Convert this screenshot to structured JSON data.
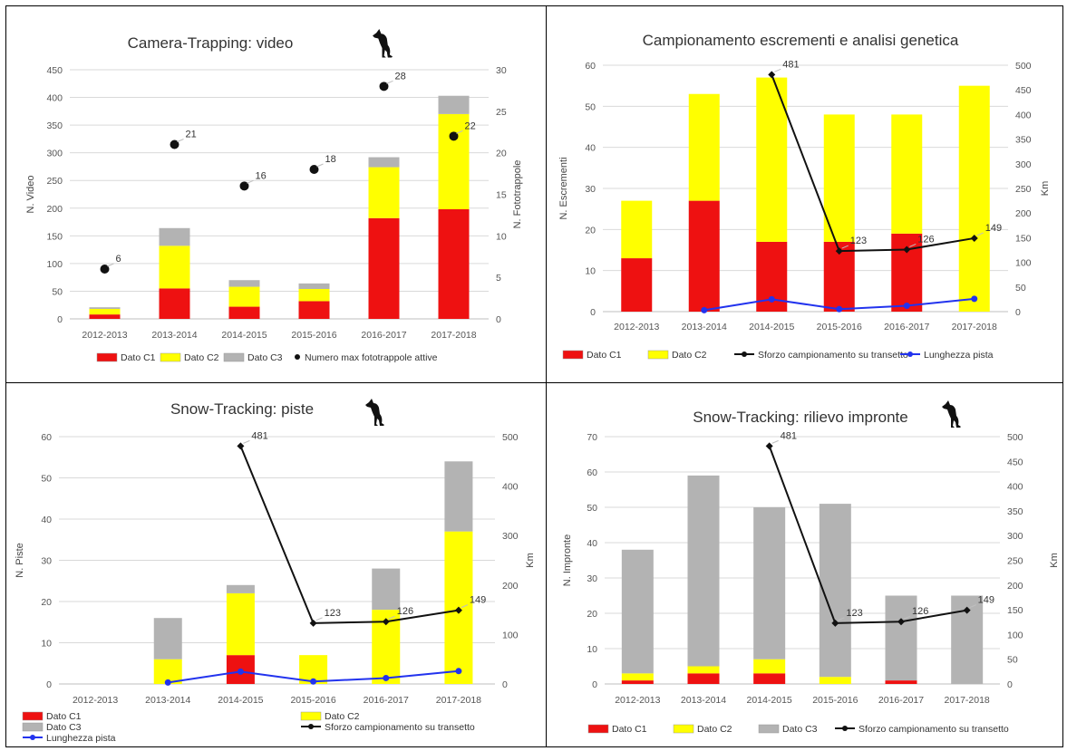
{
  "colors": {
    "c1": "#ee1111",
    "c2": "#ffff00",
    "c3": "#b3b3b3",
    "effort": "#111111",
    "length": "#2233ee",
    "grid": "#d9d9d9"
  },
  "icons": {
    "wolf": "wolf-icon"
  },
  "chart_data": [
    {
      "id": "video",
      "type": "bar",
      "title": "Camera-Trapping: video",
      "categories": [
        "2012-2013",
        "2013-2014",
        "2014-2015",
        "2015-2016",
        "2016-2017",
        "2017-2018"
      ],
      "ylabel": "N. Video",
      "y2label": "N. Fototrappole",
      "ylim": [
        0,
        450
      ],
      "yticks": [
        0,
        50,
        100,
        150,
        200,
        250,
        300,
        350,
        400,
        450
      ],
      "y2lim": [
        0,
        30
      ],
      "y2ticks": [
        0,
        5,
        10,
        15,
        20,
        25,
        30
      ],
      "series": [
        {
          "name": "Dato C1",
          "kind": "bar",
          "color": "c1",
          "values": [
            8,
            55,
            22,
            32,
            182,
            198
          ]
        },
        {
          "name": "Dato C2",
          "kind": "bar",
          "color": "c2",
          "values": [
            10,
            77,
            36,
            22,
            92,
            172
          ]
        },
        {
          "name": "Dato C3",
          "kind": "bar",
          "color": "c3",
          "values": [
            3,
            32,
            12,
            10,
            18,
            33
          ]
        },
        {
          "name": "Numero max fototrappole attive",
          "kind": "dots",
          "axis": "right",
          "color": "effort",
          "values": [
            6,
            21,
            16,
            18,
            28,
            22
          ],
          "labels": [
            "6",
            "21",
            "16",
            "18",
            "28",
            "22"
          ]
        }
      ],
      "legend": [
        {
          "label": "Dato C1",
          "sym": "box",
          "color": "c1"
        },
        {
          "label": "Dato C2",
          "sym": "box",
          "color": "c2"
        },
        {
          "label": "Dato C3",
          "sym": "box",
          "color": "c3"
        },
        {
          "label": "Numero max fototrappole attive",
          "sym": "dot",
          "color": "effort"
        }
      ],
      "grid": true
    },
    {
      "id": "scat",
      "type": "bar",
      "title": "Campionamento escrementi e analisi genetica",
      "categories": [
        "2012-2013",
        "2013-2014",
        "2014-2015",
        "2015-2016",
        "2016-2017",
        "2017-2018"
      ],
      "ylabel": "N. Escrementi",
      "y2label": "Km",
      "ylim": [
        0,
        60
      ],
      "yticks": [
        0,
        10,
        20,
        30,
        40,
        50,
        60
      ],
      "y2lim": [
        0,
        500
      ],
      "y2ticks": [
        0,
        50,
        100,
        150,
        200,
        250,
        300,
        350,
        400,
        450,
        500
      ],
      "series": [
        {
          "name": "Dato C1",
          "kind": "bar",
          "color": "c1",
          "values": [
            13,
            27,
            17,
            17,
            19,
            0
          ]
        },
        {
          "name": "Dato C2",
          "kind": "bar",
          "color": "c2",
          "values": [
            14,
            26,
            40,
            31,
            29,
            55
          ]
        },
        {
          "name": "Sforzo campionamento su transetto",
          "kind": "line",
          "axis": "right",
          "color": "effort",
          "values": [
            null,
            null,
            481,
            123,
            126,
            149
          ],
          "labels": [
            "",
            "",
            "481",
            "123",
            "126",
            "149"
          ]
        },
        {
          "name": "Lunghezza pista",
          "kind": "line",
          "axis": "right",
          "color": "length",
          "values": [
            null,
            3,
            25,
            5,
            12,
            26
          ]
        }
      ],
      "legend": [
        {
          "label": "Dato C1",
          "sym": "box",
          "color": "c1"
        },
        {
          "label": "Dato C2",
          "sym": "box",
          "color": "c2"
        },
        {
          "label": "Sforzo campionamento su transetto",
          "sym": "line",
          "color": "effort"
        },
        {
          "label": "Lunghezza pista",
          "sym": "line",
          "color": "length"
        }
      ],
      "grid": true
    },
    {
      "id": "tracks",
      "type": "bar",
      "title": "Snow-Tracking: piste",
      "categories": [
        "2012-2013",
        "2013-2014",
        "2014-2015",
        "2015-2016",
        "2016-2017",
        "2017-2018"
      ],
      "ylabel": "N. Piste",
      "y2label": "Km",
      "ylim": [
        0,
        60
      ],
      "yticks": [
        0,
        10,
        20,
        30,
        40,
        50,
        60
      ],
      "y2lim": [
        0,
        500
      ],
      "y2ticks": [
        0,
        100,
        200,
        300,
        400,
        500
      ],
      "series": [
        {
          "name": "Dato C1",
          "kind": "bar",
          "color": "c1",
          "values": [
            0,
            0,
            7,
            0,
            0,
            0
          ]
        },
        {
          "name": "Dato C2",
          "kind": "bar",
          "color": "c2",
          "values": [
            0,
            6,
            15,
            7,
            18,
            37
          ]
        },
        {
          "name": "Dato C3",
          "kind": "bar",
          "color": "c3",
          "values": [
            0,
            10,
            2,
            0,
            10,
            17
          ]
        },
        {
          "name": "Sforzo campionamento su transetto",
          "kind": "line",
          "axis": "right",
          "color": "effort",
          "values": [
            null,
            null,
            481,
            123,
            126,
            149
          ],
          "labels": [
            "",
            "",
            "481",
            "123",
            "126",
            "149"
          ]
        },
        {
          "name": "Lunghezza pista",
          "kind": "line",
          "axis": "right",
          "color": "length",
          "values": [
            null,
            3,
            25,
            5,
            12,
            26
          ]
        }
      ],
      "legend": [
        {
          "label": "Dato C1",
          "sym": "box",
          "color": "c1"
        },
        {
          "label": "Dato C2",
          "sym": "box",
          "color": "c2"
        },
        {
          "label": "Dato C3",
          "sym": "box",
          "color": "c3"
        },
        {
          "label": "Sforzo campionamento su transetto",
          "sym": "line",
          "color": "effort"
        },
        {
          "label": "Lunghezza pista",
          "sym": "line",
          "color": "length"
        }
      ],
      "grid": true
    },
    {
      "id": "prints",
      "type": "bar",
      "title": "Snow-Tracking: rilievo impronte",
      "categories": [
        "2012-2013",
        "2013-2014",
        "2014-2015",
        "2015-2016",
        "2016-2017",
        "2017-2018"
      ],
      "ylabel": "N. Impronte",
      "y2label": "Km",
      "ylim": [
        0,
        70
      ],
      "yticks": [
        0,
        10,
        20,
        30,
        40,
        50,
        60,
        70
      ],
      "y2lim": [
        0,
        500
      ],
      "y2ticks": [
        0,
        50,
        100,
        150,
        200,
        250,
        300,
        350,
        400,
        450,
        500
      ],
      "series": [
        {
          "name": "Dato C1",
          "kind": "bar",
          "color": "c1",
          "values": [
            1,
            3,
            3,
            0,
            1,
            0
          ]
        },
        {
          "name": "Dato C2",
          "kind": "bar",
          "color": "c2",
          "values": [
            2,
            2,
            4,
            2,
            0,
            0
          ]
        },
        {
          "name": "Dato C3",
          "kind": "bar",
          "color": "c3",
          "values": [
            35,
            54,
            43,
            49,
            24,
            25
          ]
        },
        {
          "name": "Sforzo campionamento su transetto",
          "kind": "line",
          "axis": "right",
          "color": "effort",
          "values": [
            null,
            null,
            481,
            123,
            126,
            149
          ],
          "labels": [
            "",
            "",
            "481",
            "123",
            "126",
            "149"
          ]
        }
      ],
      "legend": [
        {
          "label": "Dato C1",
          "sym": "box",
          "color": "c1"
        },
        {
          "label": "Dato C2",
          "sym": "box",
          "color": "c2"
        },
        {
          "label": "Dato C3",
          "sym": "box",
          "color": "c3"
        },
        {
          "label": "Sforzo campionamento su transetto",
          "sym": "line",
          "color": "effort"
        }
      ],
      "grid": true
    }
  ]
}
